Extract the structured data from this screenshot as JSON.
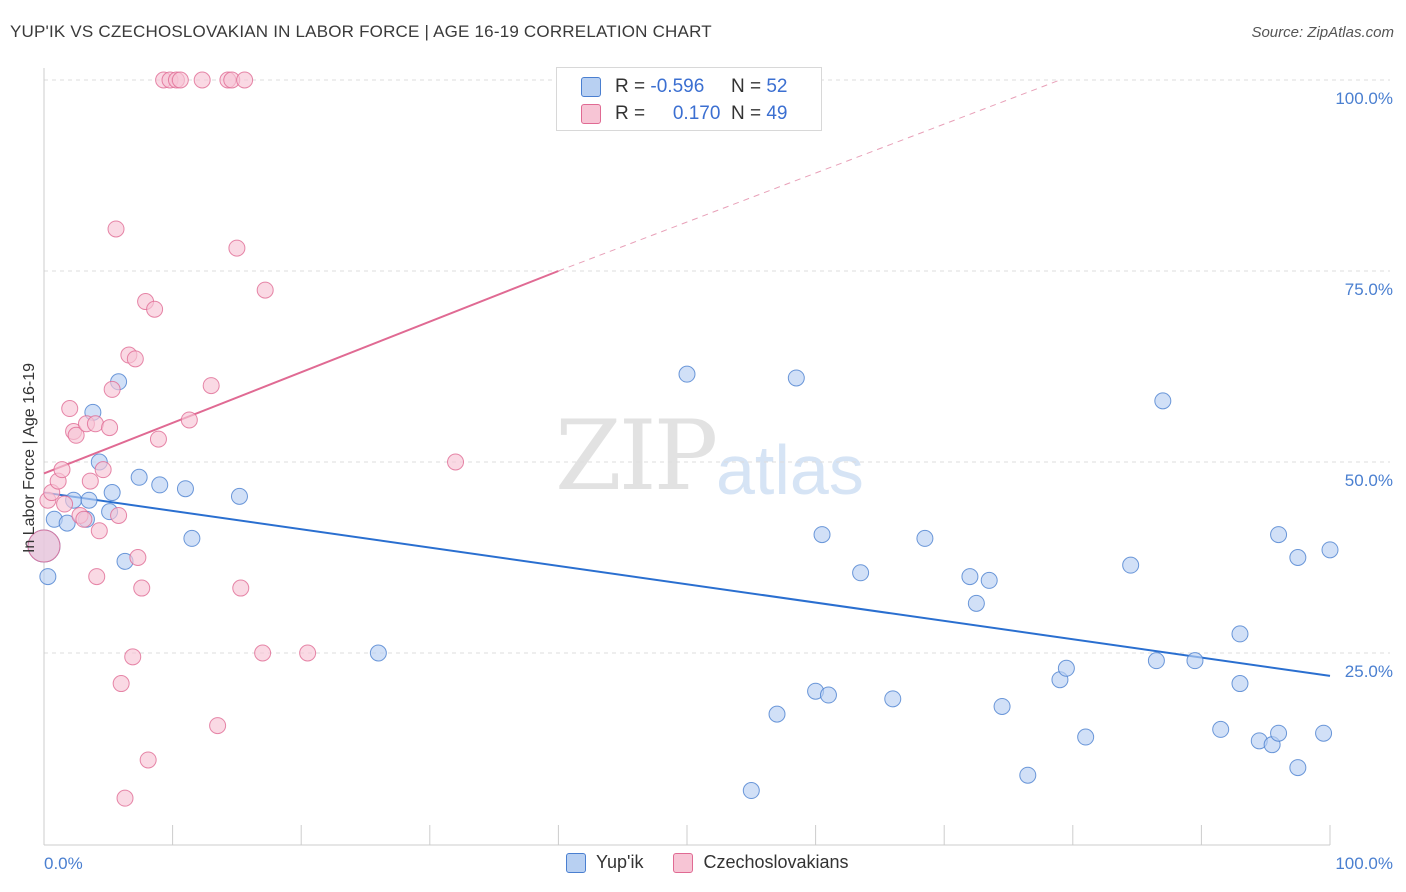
{
  "title": "YUP'IK VS CZECHOSLOVAKIAN IN LABOR FORCE | AGE 16-19 CORRELATION CHART",
  "source": "Source: ZipAtlas.com",
  "watermark": {
    "zip": "ZIP",
    "atlas": "atlas"
  },
  "legend": {
    "rows": [
      {
        "r_label": "R =",
        "r_value": "-0.596",
        "n_label": "N =",
        "n_value": "52"
      },
      {
        "r_label": "R =",
        "r_value": "0.170",
        "n_label": "N =",
        "n_value": "49"
      }
    ]
  },
  "bottom_legend": {
    "blue": "Yup'ik",
    "pink": "Czechoslovakians"
  },
  "colors": {
    "blue": "#4a7fd0",
    "blue_fill": "#b8d0f2",
    "pink": "#e06a93",
    "pink_fill": "#f7c5d5",
    "blue_line": "#2a6fd0",
    "pink_line": "#e06a93"
  },
  "chart_data": {
    "type": "scatter",
    "ylabel": "In Labor Force | Age 16-19",
    "x_tick_labels": [
      "0.0%",
      "100.0%"
    ],
    "y_tick_labels": [
      "100.0%",
      "75.0%",
      "50.0%",
      "25.0%"
    ],
    "xlim": [
      0,
      100
    ],
    "ylim": [
      2,
      102
    ],
    "y_ticks": [
      100,
      75,
      50,
      25
    ],
    "grid": "horizontal dashed",
    "series": [
      {
        "name": "Yup'ik",
        "color": "#4a7fd0",
        "points": [
          [
            0.3,
            35.0
          ],
          [
            0.8,
            42.5
          ],
          [
            1.8,
            42.0
          ],
          [
            2.3,
            45.0
          ],
          [
            3.3,
            42.5
          ],
          [
            3.5,
            45.0
          ],
          [
            3.8,
            56.5
          ],
          [
            4.3,
            50.0
          ],
          [
            5.1,
            43.5
          ],
          [
            5.3,
            46.0
          ],
          [
            5.8,
            60.5
          ],
          [
            6.3,
            37.0
          ],
          [
            7.4,
            48.0
          ],
          [
            9.0,
            47.0
          ],
          [
            11.0,
            46.5
          ],
          [
            11.5,
            40.0
          ],
          [
            15.2,
            45.5
          ],
          [
            26.0,
            25.0
          ],
          [
            50.0,
            61.5
          ],
          [
            55.0,
            7.0
          ],
          [
            57.0,
            17.0
          ],
          [
            58.5,
            61.0
          ],
          [
            60.0,
            20.0
          ],
          [
            60.5,
            40.5
          ],
          [
            61.0,
            19.5
          ],
          [
            63.5,
            35.5
          ],
          [
            66.0,
            19.0
          ],
          [
            68.5,
            40.0
          ],
          [
            72.0,
            35.0
          ],
          [
            72.5,
            31.5
          ],
          [
            73.5,
            34.5
          ],
          [
            74.5,
            18.0
          ],
          [
            76.5,
            9.0
          ],
          [
            79.0,
            21.5
          ],
          [
            79.5,
            23.0
          ],
          [
            81.0,
            14.0
          ],
          [
            84.5,
            36.5
          ],
          [
            86.5,
            24.0
          ],
          [
            87.0,
            58.0
          ],
          [
            89.5,
            24.0
          ],
          [
            91.5,
            15.0
          ],
          [
            93.0,
            27.5
          ],
          [
            93.0,
            21.0
          ],
          [
            94.5,
            13.5
          ],
          [
            95.5,
            13.0
          ],
          [
            96.0,
            14.5
          ],
          [
            96.0,
            40.5
          ],
          [
            97.5,
            10.0
          ],
          [
            97.5,
            37.5
          ],
          [
            99.5,
            14.5
          ],
          [
            100.0,
            38.5
          ],
          [
            0.0,
            39.0
          ]
        ]
      },
      {
        "name": "Czechoslovakians",
        "color": "#e06a93",
        "points": [
          [
            0.0,
            39.0
          ],
          [
            0.3,
            45.0
          ],
          [
            0.6,
            46.0
          ],
          [
            1.1,
            47.5
          ],
          [
            1.4,
            49.0
          ],
          [
            1.6,
            44.5
          ],
          [
            2.0,
            57.0
          ],
          [
            2.3,
            54.0
          ],
          [
            2.5,
            53.5
          ],
          [
            2.8,
            43.0
          ],
          [
            3.1,
            42.5
          ],
          [
            3.3,
            55.0
          ],
          [
            3.6,
            47.5
          ],
          [
            4.0,
            55.0
          ],
          [
            4.1,
            35.0
          ],
          [
            4.3,
            41.0
          ],
          [
            4.6,
            49.0
          ],
          [
            5.1,
            54.5
          ],
          [
            5.3,
            59.5
          ],
          [
            5.6,
            80.5
          ],
          [
            5.8,
            43.0
          ],
          [
            6.0,
            21.0
          ],
          [
            6.3,
            6.0
          ],
          [
            6.6,
            64.0
          ],
          [
            6.9,
            24.5
          ],
          [
            7.1,
            63.5
          ],
          [
            7.3,
            37.5
          ],
          [
            7.6,
            33.5
          ],
          [
            7.9,
            71.0
          ],
          [
            8.1,
            11.0
          ],
          [
            8.6,
            70.0
          ],
          [
            8.9,
            53.0
          ],
          [
            9.3,
            100.0
          ],
          [
            9.8,
            100.0
          ],
          [
            10.3,
            100.0
          ],
          [
            10.6,
            100.0
          ],
          [
            11.3,
            55.5
          ],
          [
            12.3,
            100.0
          ],
          [
            13.0,
            60.0
          ],
          [
            13.5,
            15.5
          ],
          [
            14.3,
            100.0
          ],
          [
            14.6,
            100.0
          ],
          [
            15.0,
            78.0
          ],
          [
            15.3,
            33.5
          ],
          [
            15.6,
            100.0
          ],
          [
            17.2,
            72.5
          ],
          [
            17.0,
            25.0
          ],
          [
            20.5,
            25.0
          ],
          [
            32.0,
            50.0
          ]
        ]
      }
    ],
    "trendlines": [
      {
        "series": "Yup'ik",
        "x": [
          0,
          100
        ],
        "y": [
          46.0,
          22.0
        ]
      },
      {
        "series": "Czechoslovakians",
        "x": [
          0,
          40
        ],
        "y": [
          48.5,
          75.0
        ],
        "dashed_extension_x": [
          40,
          79
        ],
        "dashed_extension_y": [
          75.0,
          100.0
        ]
      }
    ]
  }
}
